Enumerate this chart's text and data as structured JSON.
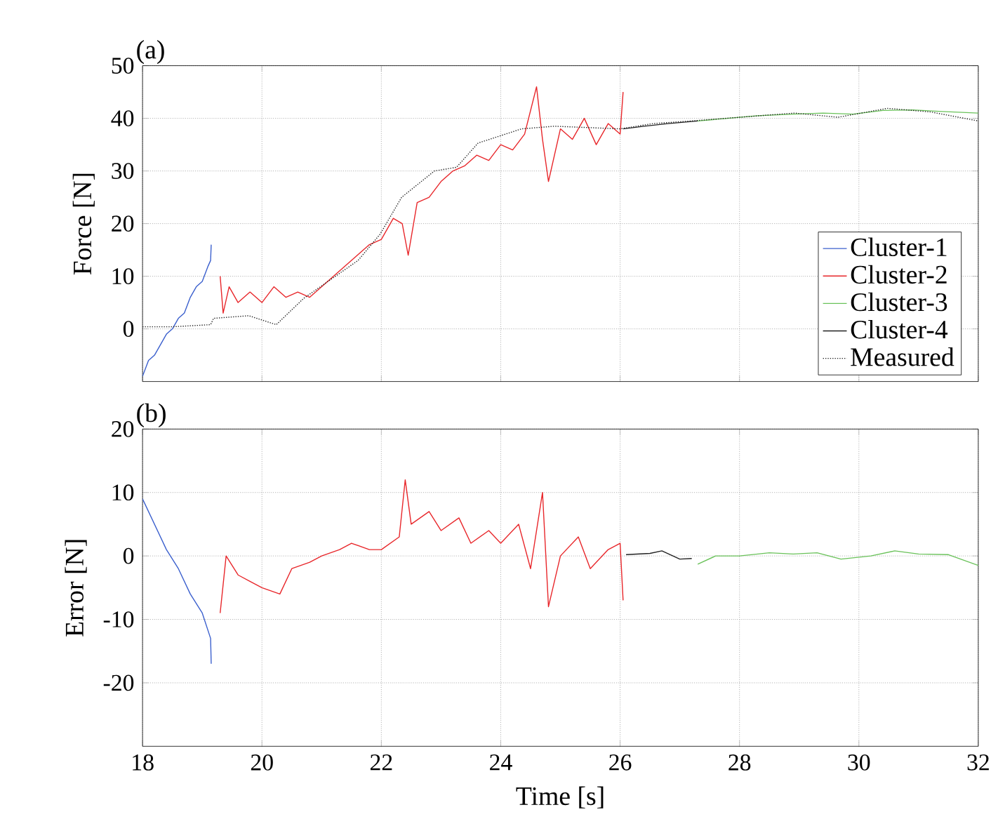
{
  "chart_data": [
    {
      "type": "line",
      "ylabel": "Force [N]",
      "xlim": [
        18,
        32
      ],
      "ylim": [
        -10,
        50
      ],
      "xticks": [
        18,
        20,
        22,
        24,
        26,
        28,
        30,
        32
      ],
      "yticks": [
        0,
        10,
        20,
        30,
        40,
        50
      ],
      "tick_labels": "y",
      "grid": true,
      "legend": "bottom right",
      "marker": "none",
      "annotations": [
        "(a)"
      ],
      "series": [
        {
          "name": "Cluster-1",
          "color": "#3a5fcd",
          "line_style": "solid",
          "x": [
            18.0,
            18.1,
            18.2,
            18.3,
            18.4,
            18.5,
            18.6,
            18.7,
            18.8,
            18.9,
            19.0,
            19.1,
            19.14,
            19.15
          ],
          "values": [
            -9,
            -6,
            -5,
            -3,
            -1,
            0,
            2,
            3,
            6,
            8,
            9,
            12,
            13,
            16
          ]
        },
        {
          "name": "Cluster-2",
          "color": "#e8262a",
          "line_style": "solid",
          "x": [
            19.3,
            19.35,
            19.45,
            19.6,
            19.8,
            20.0,
            20.2,
            20.4,
            20.6,
            20.8,
            21.0,
            21.2,
            21.4,
            21.6,
            21.8,
            22.0,
            22.2,
            22.35,
            22.45,
            22.6,
            22.8,
            23.0,
            23.2,
            23.4,
            23.6,
            23.8,
            24.0,
            24.2,
            24.4,
            24.6,
            24.7,
            24.8,
            25.0,
            25.2,
            25.4,
            25.6,
            25.8,
            26.0,
            26.05
          ],
          "values": [
            10,
            3,
            8,
            5,
            7,
            5,
            8,
            6,
            7,
            6,
            8,
            10,
            12,
            14,
            16,
            17,
            21,
            20,
            14,
            24,
            25,
            28,
            30,
            31,
            33,
            32,
            35,
            34,
            37,
            46,
            36,
            28,
            38,
            36,
            40,
            35,
            39,
            37,
            45
          ]
        },
        {
          "name": "Cluster-3",
          "color": "#6ac25a",
          "line_style": "solid",
          "x": [
            27.3,
            27.8,
            28.3,
            28.9,
            29.4,
            29.9,
            30.4,
            30.9,
            31.4,
            32.0
          ],
          "values": [
            39.5,
            40,
            40.5,
            40.8,
            41,
            40.8,
            41.5,
            41.6,
            41.3,
            41
          ]
        },
        {
          "name": "Cluster-4",
          "color": "#222222",
          "line_style": "solid",
          "x": [
            26.05,
            26.4,
            26.8,
            27.3
          ],
          "values": [
            38,
            38.5,
            39,
            39.5
          ]
        },
        {
          "name": "Measured",
          "color": "#222222",
          "line_style": "dotted",
          "x": [
            18.0,
            18.5,
            19.14,
            19.19,
            19.78,
            20.24,
            20.7,
            21.61,
            21.98,
            22.34,
            22.89,
            23.26,
            23.62,
            24.35,
            24.9,
            26.0,
            26.55,
            27.19,
            28.0,
            28.92,
            29.65,
            30.48,
            31.21,
            32.0
          ],
          "values": [
            0.4,
            0.4,
            0.8,
            2,
            2.5,
            0.8,
            5.8,
            13,
            18,
            25,
            30,
            30.7,
            35.3,
            38,
            38.5,
            38,
            39,
            39.5,
            40.2,
            41,
            40.2,
            41.9,
            41.2,
            39.5
          ]
        }
      ]
    },
    {
      "type": "line",
      "xlabel": "Time [s]",
      "ylabel": "Error [N]",
      "xlim": [
        18,
        32
      ],
      "ylim": [
        -30,
        20
      ],
      "xticks": [
        18,
        20,
        22,
        24,
        26,
        28,
        30,
        32
      ],
      "yticks": [
        -20,
        -10,
        0,
        10,
        20
      ],
      "grid": true,
      "marker": "none",
      "annotations": [
        "(b)"
      ],
      "series": [
        {
          "color": "#3a5fcd",
          "line_style": "solid",
          "x": [
            18.0,
            18.2,
            18.4,
            18.6,
            18.8,
            19.0,
            19.14,
            19.15
          ],
          "values": [
            9,
            5,
            1,
            -2,
            -6,
            -9,
            -13,
            -17
          ]
        },
        {
          "color": "#e8262a",
          "line_style": "solid",
          "x": [
            19.3,
            19.4,
            19.6,
            19.8,
            20.0,
            20.3,
            20.5,
            20.8,
            21.0,
            21.3,
            21.5,
            21.8,
            22.0,
            22.3,
            22.4,
            22.5,
            22.8,
            23.0,
            23.3,
            23.5,
            23.8,
            24.0,
            24.3,
            24.5,
            24.7,
            24.8,
            25.0,
            25.3,
            25.5,
            25.8,
            26.0,
            26.05
          ],
          "values": [
            -9,
            0,
            -3,
            -4,
            -5,
            -6,
            -2,
            -1,
            0,
            1,
            2,
            1,
            1,
            3,
            12,
            5,
            7,
            4,
            6,
            2,
            4,
            2,
            5,
            -2,
            10,
            -8,
            0,
            3,
            -2,
            1,
            2,
            -7
          ]
        },
        {
          "color": "#222222",
          "line_style": "solid",
          "x": [
            26.1,
            26.5,
            26.7,
            27.0,
            27.2
          ],
          "values": [
            0.2,
            0.4,
            0.8,
            -0.5,
            -0.4
          ]
        },
        {
          "color": "#6ac25a",
          "line_style": "solid",
          "x": [
            27.3,
            27.6,
            28.0,
            28.5,
            28.9,
            29.3,
            29.7,
            30.2,
            30.6,
            31.0,
            31.5,
            32.0
          ],
          "values": [
            -1.3,
            0,
            0,
            0.5,
            0.3,
            0.5,
            -0.5,
            0,
            0.8,
            0.3,
            0.2,
            -1.5
          ]
        }
      ]
    }
  ]
}
